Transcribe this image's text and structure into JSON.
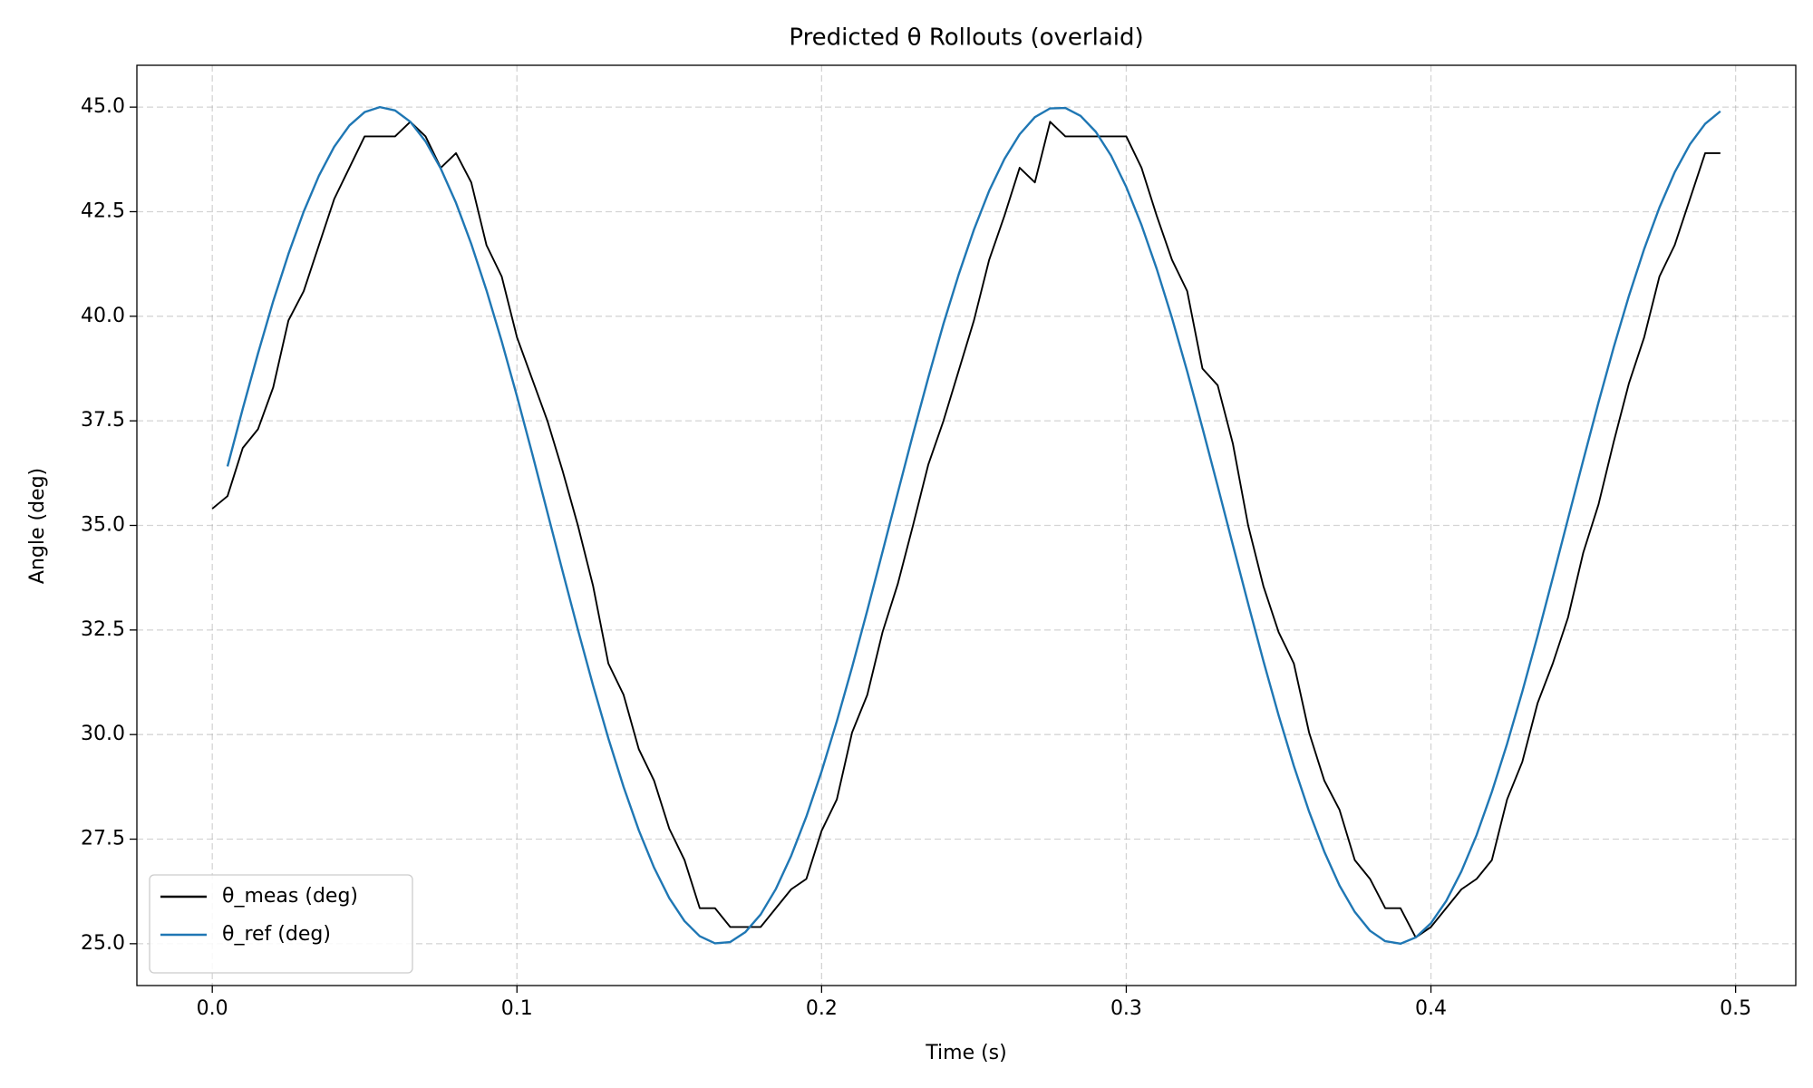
{
  "chart_data": {
    "type": "line",
    "title": "Predicted θ Rollouts (overlaid)",
    "xlabel": "Time (s)",
    "ylabel": "Angle (deg)",
    "x": [
      0,
      0.005,
      0.01,
      0.015,
      0.02,
      0.025,
      0.03,
      0.035,
      0.04,
      0.045,
      0.05,
      0.055,
      0.06,
      0.065,
      0.07,
      0.075,
      0.08,
      0.085,
      0.09,
      0.095,
      0.1,
      0.105,
      0.11,
      0.115,
      0.12,
      0.125,
      0.13,
      0.135,
      0.14,
      0.145,
      0.15,
      0.155,
      0.16,
      0.165,
      0.17,
      0.175,
      0.18,
      0.185,
      0.19,
      0.195,
      0.2,
      0.205,
      0.21,
      0.215,
      0.22,
      0.225,
      0.23,
      0.235,
      0.24,
      0.245,
      0.25,
      0.255,
      0.26,
      0.265,
      0.27,
      0.275,
      0.28,
      0.285,
      0.29,
      0.295,
      0.3,
      0.305,
      0.31,
      0.315,
      0.32,
      0.325,
      0.33,
      0.335,
      0.34,
      0.345,
      0.35,
      0.355,
      0.36,
      0.365,
      0.37,
      0.375,
      0.38,
      0.385,
      0.39,
      0.395,
      0.4,
      0.405,
      0.41,
      0.415,
      0.42,
      0.425,
      0.43,
      0.435,
      0.44,
      0.445,
      0.45,
      0.455,
      0.46,
      0.465,
      0.47,
      0.475,
      0.48,
      0.485,
      0.49,
      0.495
    ],
    "series": [
      {
        "name": "θ_meas (deg)",
        "color": "#000000",
        "values": [
          35.4,
          35.7,
          36.85,
          37.3,
          38.3,
          39.9,
          40.6,
          41.7,
          42.8,
          43.55,
          44.3,
          44.3,
          44.3,
          44.65,
          44.3,
          43.55,
          43.9,
          43.2,
          41.7,
          40.95,
          39.5,
          38.5,
          37.5,
          36.3,
          35.0,
          33.55,
          31.7,
          30.95,
          29.65,
          28.9,
          27.75,
          27.0,
          25.85,
          25.85,
          25.4,
          25.4,
          25.4,
          25.85,
          26.3,
          26.55,
          27.7,
          28.45,
          30.05,
          30.95,
          32.45,
          33.6,
          35.0,
          36.45,
          37.5,
          38.7,
          39.9,
          41.35,
          42.4,
          43.55,
          43.2,
          44.65,
          44.3,
          44.3,
          44.3,
          44.3,
          44.3,
          43.55,
          42.4,
          41.35,
          40.6,
          38.75,
          38.35,
          36.95,
          35.0,
          33.55,
          32.45,
          31.7,
          30.05,
          28.9,
          28.2,
          27.0,
          26.55,
          25.85,
          25.85,
          25.15,
          25.4,
          25.85,
          26.3,
          26.55,
          27.0,
          28.45,
          29.35,
          30.75,
          31.7,
          32.8,
          34.35,
          35.5,
          37.0,
          38.4,
          39.5,
          40.95,
          41.7,
          42.8,
          43.9,
          43.9
        ]
      },
      {
        "name": "θ_ref (deg)",
        "color": "#1f77b4",
        "values": [
          null,
          36.41,
          37.79,
          39.11,
          40.36,
          41.49,
          42.5,
          43.36,
          44.05,
          44.56,
          44.88,
          45.0,
          44.92,
          44.65,
          44.18,
          43.53,
          42.71,
          41.73,
          40.62,
          39.4,
          38.09,
          36.72,
          35.31,
          33.9,
          32.51,
          31.17,
          29.91,
          28.75,
          27.71,
          26.82,
          26.09,
          25.54,
          25.18,
          25.01,
          25.04,
          25.28,
          25.7,
          26.31,
          27.1,
          28.04,
          29.12,
          30.32,
          31.61,
          32.97,
          34.37,
          35.78,
          37.18,
          38.53,
          39.82,
          41.0,
          42.07,
          43.0,
          43.76,
          44.35,
          44.76,
          44.97,
          44.98,
          44.79,
          44.41,
          43.84,
          43.09,
          42.18,
          41.13,
          39.96,
          38.68,
          37.33,
          35.94,
          34.53,
          33.13,
          31.76,
          30.46,
          29.25,
          28.16,
          27.2,
          26.39,
          25.76,
          25.31,
          25.06,
          25.0,
          25.15,
          25.49,
          26.02,
          26.73,
          27.6,
          28.63,
          29.78,
          31.03,
          32.36,
          33.75,
          35.16,
          36.56,
          37.94,
          39.26,
          40.49,
          41.61,
          42.6,
          43.44,
          44.11,
          44.6,
          44.9
        ]
      }
    ],
    "xlim": [
      -0.02475,
      0.51975
    ],
    "xticks": [
      {
        "value": 0,
        "label": "0.0"
      },
      0.1,
      0.2,
      0.3,
      0.4,
      0.5
    ],
    "ylim": [
      24.0,
      46.0
    ],
    "yticks": [
      {
        "value": 25,
        "label": "25.0"
      },
      27.5,
      {
        "value": 30,
        "label": "30.0"
      },
      32.5,
      {
        "value": 35,
        "label": "35.0"
      },
      37.5,
      {
        "value": 40,
        "label": "40.0"
      },
      42.5,
      {
        "value": 45,
        "label": "45.0"
      }
    ],
    "grid": true,
    "legend": "lower left"
  }
}
